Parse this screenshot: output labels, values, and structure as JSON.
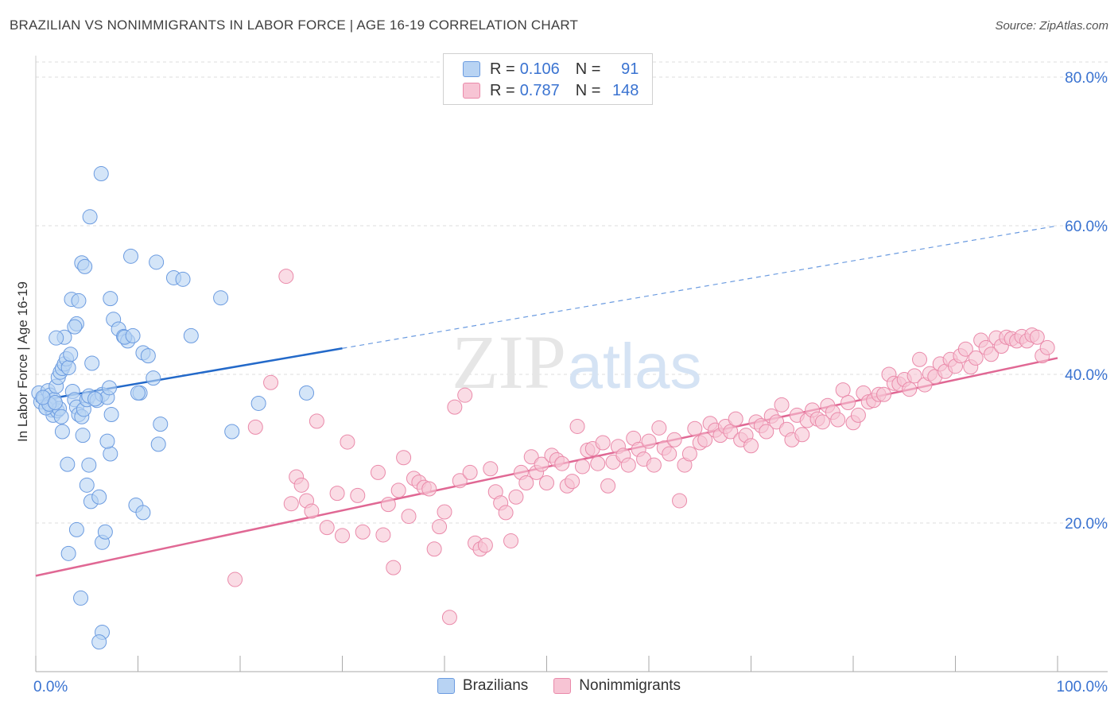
{
  "title": "BRAZILIAN VS NONIMMIGRANTS IN LABOR FORCE | AGE 16-19 CORRELATION CHART",
  "source": "Source: ZipAtlas.com",
  "watermark": {
    "zip": "ZIP",
    "atlas": "atlas"
  },
  "legend_top": [
    {
      "r_label": "R =",
      "r_value": "0.106",
      "n_label": "N =",
      "n_value": "91"
    },
    {
      "r_label": "R =",
      "r_value": "0.787",
      "n_label": "N =",
      "n_value": "148"
    }
  ],
  "legend_bottom": [
    "Brazilians",
    "Nonimmigrants"
  ],
  "colors": {
    "blue_fill": "#b8d3f3",
    "blue_stroke": "#6b9be0",
    "blue_line": "#2369c9",
    "pink_fill": "#f7c4d4",
    "pink_stroke": "#ea8aaa",
    "pink_line": "#e06894",
    "tick_label": "#3a73d1",
    "grid": "#dcdcdc"
  },
  "chart_data": {
    "type": "scatter",
    "title": "BRAZILIAN VS NONIMMIGRANTS IN LABOR FORCE | AGE 16-19 CORRELATION CHART",
    "xlabel": "",
    "ylabel": "In Labor Force | Age 16-19",
    "xlim": [
      0,
      100
    ],
    "ylim": [
      0,
      80
    ],
    "x_ticks": [
      0,
      100
    ],
    "x_tick_labels": [
      "0.0%",
      "100.0%"
    ],
    "y_ticks": [
      20,
      40,
      60,
      80
    ],
    "y_tick_labels": [
      "20.0%",
      "40.0%",
      "60.0%",
      "80.0%"
    ],
    "grid": "horizontal dashed",
    "legend_placement": "top-center and bottom",
    "series": [
      {
        "name": "Brazilians",
        "R": 0.106,
        "N": 91,
        "trend": {
          "x": [
            0,
            30
          ],
          "y": [
            36.4,
            43.5
          ],
          "dashed_to": [
            100,
            60.0
          ]
        },
        "points": [
          [
            0.3,
            37.5
          ],
          [
            0.5,
            36.3
          ],
          [
            0.8,
            36.8
          ],
          [
            1.0,
            35.5
          ],
          [
            1.2,
            37.8
          ],
          [
            1.4,
            37.2
          ],
          [
            1.5,
            35.9
          ],
          [
            1.6,
            35.2
          ],
          [
            1.8,
            36.6
          ],
          [
            2.0,
            38.4
          ],
          [
            2.2,
            39.6
          ],
          [
            2.4,
            40.3
          ],
          [
            2.6,
            40.8
          ],
          [
            2.8,
            41.4
          ],
          [
            3.0,
            42.1
          ],
          [
            3.2,
            40.9
          ],
          [
            1.7,
            34.5
          ],
          [
            2.1,
            35.1
          ],
          [
            2.3,
            35.4
          ],
          [
            2.5,
            34.3
          ],
          [
            3.4,
            42.7
          ],
          [
            3.6,
            37.7
          ],
          [
            3.8,
            36.6
          ],
          [
            4.0,
            35.6
          ],
          [
            4.2,
            34.6
          ],
          [
            4.5,
            34.3
          ],
          [
            4.7,
            35.3
          ],
          [
            5.0,
            36.6
          ],
          [
            5.2,
            37.1
          ],
          [
            5.5,
            41.5
          ],
          [
            6.0,
            36.5
          ],
          [
            6.5,
            37.3
          ],
          [
            7.0,
            36.9
          ],
          [
            7.2,
            38.2
          ],
          [
            7.4,
            34.6
          ],
          [
            2.8,
            45.0
          ],
          [
            3.5,
            50.1
          ],
          [
            4.2,
            49.9
          ],
          [
            4.0,
            46.8
          ],
          [
            3.8,
            46.4
          ],
          [
            2.0,
            44.9
          ],
          [
            4.5,
            55.0
          ],
          [
            4.8,
            54.5
          ],
          [
            5.3,
            61.2
          ],
          [
            6.4,
            67.0
          ],
          [
            7.3,
            50.2
          ],
          [
            7.6,
            47.4
          ],
          [
            8.1,
            46.1
          ],
          [
            8.6,
            45.1
          ],
          [
            9.0,
            44.5
          ],
          [
            8.7,
            45.0
          ],
          [
            9.5,
            45.2
          ],
          [
            9.3,
            55.9
          ],
          [
            10.5,
            42.9
          ],
          [
            11.0,
            42.5
          ],
          [
            10.2,
            37.5
          ],
          [
            10.0,
            37.5
          ],
          [
            11.5,
            39.5
          ],
          [
            11.8,
            55.1
          ],
          [
            13.5,
            53.0
          ],
          [
            14.4,
            52.8
          ],
          [
            15.2,
            45.2
          ],
          [
            18.1,
            50.3
          ],
          [
            19.2,
            32.3
          ],
          [
            21.8,
            36.1
          ],
          [
            26.5,
            37.5
          ],
          [
            2.6,
            32.3
          ],
          [
            3.1,
            27.9
          ],
          [
            4.6,
            31.8
          ],
          [
            5.0,
            25.1
          ],
          [
            5.2,
            27.8
          ],
          [
            5.4,
            22.9
          ],
          [
            6.2,
            23.5
          ],
          [
            6.5,
            17.4
          ],
          [
            6.8,
            18.8
          ],
          [
            7.3,
            29.3
          ],
          [
            7.0,
            31.0
          ],
          [
            9.8,
            22.4
          ],
          [
            10.5,
            21.4
          ],
          [
            12.0,
            30.6
          ],
          [
            12.2,
            33.3
          ],
          [
            4.0,
            19.1
          ],
          [
            3.2,
            15.9
          ],
          [
            4.4,
            9.9
          ],
          [
            6.5,
            5.3
          ],
          [
            6.2,
            4.0
          ],
          [
            1.0,
            35.5
          ],
          [
            1.3,
            36.0
          ],
          [
            0.7,
            36.9
          ],
          [
            1.9,
            36.2
          ],
          [
            5.8,
            36.7
          ]
        ]
      },
      {
        "name": "Nonimmigrants",
        "R": 0.787,
        "N": 148,
        "trend": {
          "x": [
            0,
            100
          ],
          "y": [
            12.9,
            42.2
          ]
        },
        "points": [
          [
            19.5,
            12.4
          ],
          [
            21.5,
            32.9
          ],
          [
            23.0,
            38.9
          ],
          [
            24.5,
            53.2
          ],
          [
            25.0,
            22.6
          ],
          [
            25.5,
            26.2
          ],
          [
            26.0,
            25.1
          ],
          [
            26.5,
            23.0
          ],
          [
            27.0,
            21.6
          ],
          [
            27.5,
            33.7
          ],
          [
            28.5,
            19.4
          ],
          [
            29.5,
            24.0
          ],
          [
            30.0,
            18.3
          ],
          [
            30.5,
            30.9
          ],
          [
            31.5,
            23.7
          ],
          [
            32.0,
            18.8
          ],
          [
            33.5,
            26.8
          ],
          [
            34.0,
            18.4
          ],
          [
            34.5,
            22.5
          ],
          [
            35.0,
            14.0
          ],
          [
            35.5,
            24.4
          ],
          [
            36.0,
            28.8
          ],
          [
            36.5,
            20.9
          ],
          [
            37.0,
            26.0
          ],
          [
            37.5,
            25.5
          ],
          [
            38.0,
            24.8
          ],
          [
            38.5,
            24.6
          ],
          [
            39.0,
            16.5
          ],
          [
            39.5,
            19.5
          ],
          [
            40.0,
            21.5
          ],
          [
            40.5,
            7.3
          ],
          [
            41.0,
            35.6
          ],
          [
            41.5,
            25.7
          ],
          [
            42.0,
            37.2
          ],
          [
            42.5,
            26.8
          ],
          [
            43.0,
            17.3
          ],
          [
            43.5,
            16.5
          ],
          [
            44.0,
            17.0
          ],
          [
            44.5,
            27.3
          ],
          [
            45.0,
            24.2
          ],
          [
            45.5,
            22.7
          ],
          [
            46.0,
            21.4
          ],
          [
            46.5,
            17.6
          ],
          [
            47.0,
            23.5
          ],
          [
            47.5,
            26.8
          ],
          [
            48.0,
            25.4
          ],
          [
            48.5,
            28.9
          ],
          [
            49.0,
            26.8
          ],
          [
            49.5,
            27.9
          ],
          [
            50.0,
            25.4
          ],
          [
            50.5,
            29.1
          ],
          [
            51.0,
            28.5
          ],
          [
            51.5,
            28.0
          ],
          [
            52.0,
            25.0
          ],
          [
            52.5,
            25.6
          ],
          [
            53.0,
            33.0
          ],
          [
            53.5,
            27.6
          ],
          [
            54.0,
            29.8
          ],
          [
            54.5,
            30.0
          ],
          [
            55.0,
            28.0
          ],
          [
            55.5,
            30.8
          ],
          [
            56.0,
            25.0
          ],
          [
            56.5,
            28.2
          ],
          [
            57.0,
            30.3
          ],
          [
            57.5,
            29.1
          ],
          [
            58.0,
            27.8
          ],
          [
            58.5,
            31.4
          ],
          [
            59.0,
            29.9
          ],
          [
            59.5,
            28.6
          ],
          [
            60.0,
            31.0
          ],
          [
            60.5,
            27.8
          ],
          [
            61.0,
            32.8
          ],
          [
            61.5,
            30.1
          ],
          [
            62.0,
            29.3
          ],
          [
            62.5,
            31.2
          ],
          [
            63.0,
            23.0
          ],
          [
            63.5,
            27.8
          ],
          [
            64.0,
            29.3
          ],
          [
            64.5,
            32.7
          ],
          [
            65.0,
            30.8
          ],
          [
            65.5,
            31.2
          ],
          [
            66.0,
            33.4
          ],
          [
            66.5,
            32.5
          ],
          [
            67.0,
            31.8
          ],
          [
            67.5,
            33.0
          ],
          [
            68.0,
            32.3
          ],
          [
            68.5,
            34.0
          ],
          [
            69.0,
            31.2
          ],
          [
            69.5,
            31.8
          ],
          [
            70.0,
            30.4
          ],
          [
            70.5,
            33.6
          ],
          [
            71.0,
            33.1
          ],
          [
            71.5,
            32.3
          ],
          [
            72.0,
            34.4
          ],
          [
            72.5,
            33.6
          ],
          [
            73.0,
            35.9
          ],
          [
            73.5,
            32.6
          ],
          [
            74.0,
            31.2
          ],
          [
            74.5,
            34.5
          ],
          [
            75.0,
            31.9
          ],
          [
            75.5,
            33.8
          ],
          [
            76.0,
            35.2
          ],
          [
            76.5,
            34.0
          ],
          [
            77.0,
            33.6
          ],
          [
            77.5,
            35.8
          ],
          [
            78.0,
            34.9
          ],
          [
            78.5,
            33.9
          ],
          [
            79.0,
            37.9
          ],
          [
            79.5,
            36.2
          ],
          [
            80.0,
            33.5
          ],
          [
            80.5,
            34.5
          ],
          [
            81.0,
            37.5
          ],
          [
            81.5,
            36.3
          ],
          [
            82.0,
            36.5
          ],
          [
            82.5,
            37.3
          ],
          [
            83.0,
            37.3
          ],
          [
            83.5,
            40.0
          ],
          [
            84.0,
            38.8
          ],
          [
            84.5,
            38.7
          ],
          [
            85.0,
            39.3
          ],
          [
            85.5,
            38.0
          ],
          [
            86.0,
            39.8
          ],
          [
            86.5,
            42.0
          ],
          [
            87.0,
            38.6
          ],
          [
            87.5,
            40.1
          ],
          [
            88.0,
            39.7
          ],
          [
            88.5,
            41.4
          ],
          [
            89.0,
            40.4
          ],
          [
            89.5,
            42.0
          ],
          [
            90.0,
            41.1
          ],
          [
            90.5,
            42.5
          ],
          [
            91.0,
            43.4
          ],
          [
            91.5,
            41.0
          ],
          [
            92.0,
            42.2
          ],
          [
            92.5,
            44.6
          ],
          [
            93.0,
            43.6
          ],
          [
            93.5,
            42.7
          ],
          [
            94.0,
            44.9
          ],
          [
            94.5,
            43.8
          ],
          [
            95.0,
            45.0
          ],
          [
            95.5,
            44.8
          ],
          [
            96.0,
            44.5
          ],
          [
            96.5,
            45.1
          ],
          [
            97.0,
            44.5
          ],
          [
            97.5,
            45.3
          ],
          [
            98.0,
            45.0
          ],
          [
            98.5,
            42.5
          ],
          [
            99.0,
            43.6
          ]
        ]
      }
    ]
  }
}
